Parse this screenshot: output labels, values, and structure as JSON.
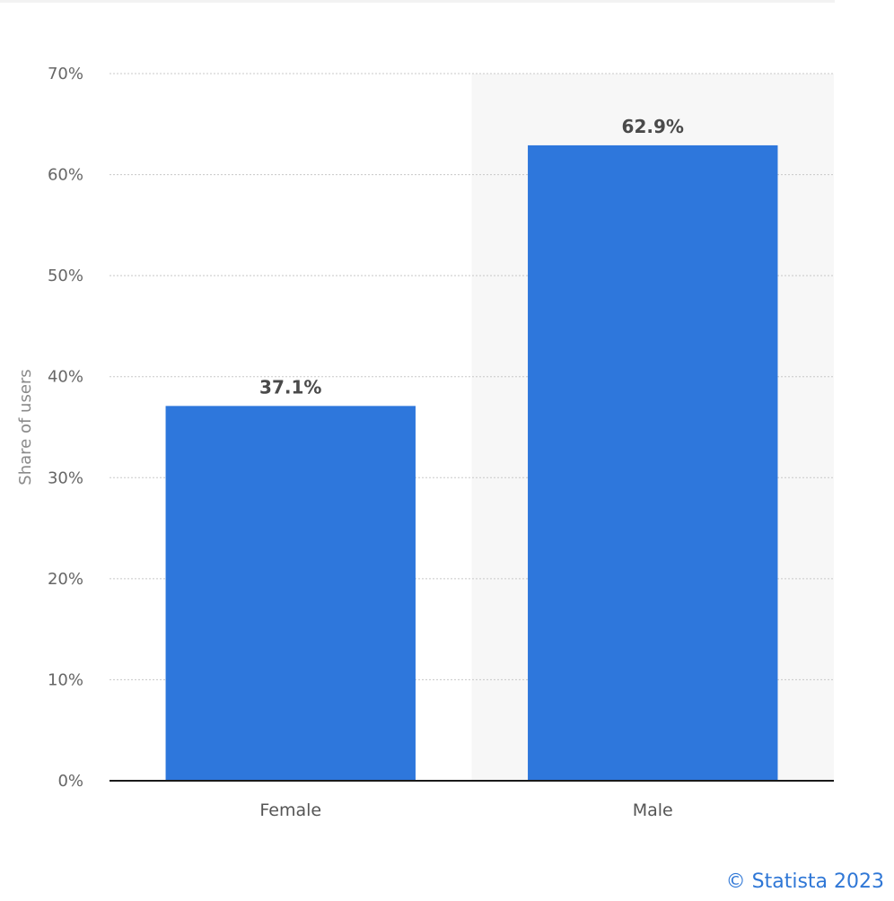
{
  "chart_data": {
    "type": "bar",
    "categories": [
      "Female",
      "Male"
    ],
    "values": [
      37.1,
      62.9
    ],
    "value_labels": [
      "37.1%",
      "62.9%"
    ],
    "title": "",
    "xlabel": "",
    "ylabel": "Share of users",
    "ylim": [
      0,
      70
    ],
    "yticks": [
      0,
      10,
      20,
      30,
      40,
      50,
      60,
      70
    ],
    "ytick_labels": [
      "0%",
      "10%",
      "20%",
      "30%",
      "40%",
      "50%",
      "60%",
      "70%"
    ],
    "grid": true,
    "highlighted_category": "Male",
    "bar_color": "#2e77dc",
    "highlight_band_color": "#f7f7f7"
  },
  "credit": "© Statista 2023"
}
